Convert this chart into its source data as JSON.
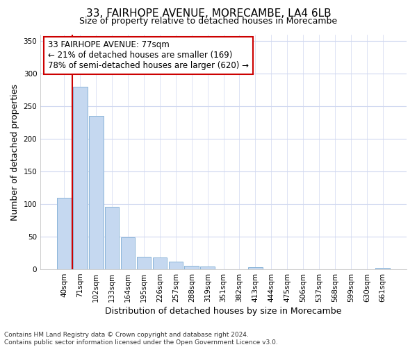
{
  "title_line1": "33, FAIRHOPE AVENUE, MORECAMBE, LA4 6LB",
  "title_line2": "Size of property relative to detached houses in Morecambe",
  "xlabel": "Distribution of detached houses by size in Morecambe",
  "ylabel": "Number of detached properties",
  "categories": [
    "40sqm",
    "71sqm",
    "102sqm",
    "133sqm",
    "164sqm",
    "195sqm",
    "226sqm",
    "257sqm",
    "288sqm",
    "319sqm",
    "351sqm",
    "382sqm",
    "413sqm",
    "444sqm",
    "475sqm",
    "506sqm",
    "537sqm",
    "568sqm",
    "599sqm",
    "630sqm",
    "661sqm"
  ],
  "values": [
    110,
    280,
    235,
    96,
    49,
    19,
    18,
    12,
    5,
    4,
    0,
    0,
    3,
    0,
    0,
    0,
    0,
    0,
    0,
    0,
    2
  ],
  "bar_color": "#c5d8f0",
  "bar_edge_color": "#8ab4d8",
  "vline_color": "#cc0000",
  "annotation_text": "33 FAIRHOPE AVENUE: 77sqm\n← 21% of detached houses are smaller (169)\n78% of semi-detached houses are larger (620) →",
  "annotation_box_color": "#ffffff",
  "annotation_box_edge_color": "#cc0000",
  "ylim": [
    0,
    360
  ],
  "yticks": [
    0,
    50,
    100,
    150,
    200,
    250,
    300,
    350
  ],
  "bg_color": "#ffffff",
  "plot_bg_color": "#ffffff",
  "grid_color": "#d0d8f0",
  "footer_line1": "Contains HM Land Registry data © Crown copyright and database right 2024.",
  "footer_line2": "Contains public sector information licensed under the Open Government Licence v3.0.",
  "title_fontsize": 11,
  "subtitle_fontsize": 9,
  "axis_label_fontsize": 9,
  "tick_fontsize": 7.5,
  "annotation_fontsize": 8.5,
  "footer_fontsize": 6.5
}
